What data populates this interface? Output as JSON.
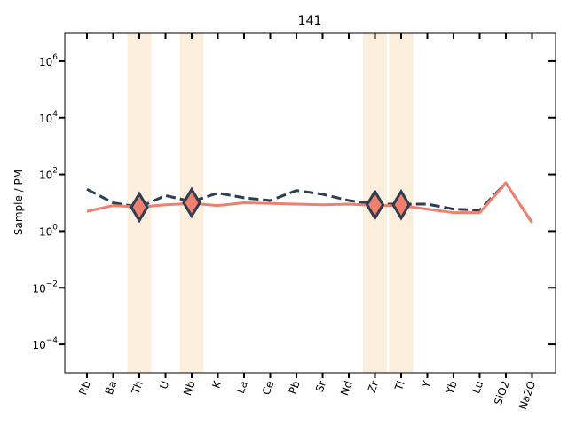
{
  "chart_data": {
    "type": "line",
    "title": "141",
    "xlabel": "",
    "ylabel": "Sample / PM",
    "yscale": "log",
    "ylim": [
      1e-05,
      10000000.0
    ],
    "y_ticks": [
      {
        "value": 0.0001,
        "base": "10",
        "exp": "−4"
      },
      {
        "value": 0.01,
        "base": "10",
        "exp": "−2"
      },
      {
        "value": 1.0,
        "base": "10",
        "exp": "0"
      },
      {
        "value": 100.0,
        "base": "10",
        "exp": "2"
      },
      {
        "value": 10000.0,
        "base": "10",
        "exp": "4"
      },
      {
        "value": 1000000.0,
        "base": "10",
        "exp": "6"
      }
    ],
    "categories": [
      "Rb",
      "Ba",
      "Th",
      "U",
      "Nb",
      "K",
      "La",
      "Ce",
      "Pb",
      "Sr",
      "Nd",
      "Zr",
      "Ti",
      "Y",
      "Yb",
      "Lu",
      "SiO2",
      "Na2O"
    ],
    "highlight_categories": [
      "Th",
      "Nb",
      "Zr",
      "Ti"
    ],
    "highlight_color": "#fbeedd",
    "grid": false,
    "series": [
      {
        "style": "dashed",
        "color": "#2c3e50",
        "values": [
          30,
          10,
          7,
          18,
          11,
          22,
          15,
          12,
          27,
          20,
          12,
          9,
          9,
          9,
          6,
          5.5,
          50,
          2
        ]
      },
      {
        "style": "solid",
        "color": "#f07f6e",
        "values": [
          5,
          8,
          7,
          8.5,
          9.5,
          8,
          10,
          9.5,
          9,
          8.5,
          9,
          8,
          8,
          6,
          4.5,
          4.5,
          50,
          2
        ]
      }
    ],
    "markers": {
      "shape": "diamond",
      "fill": "#f07f6e",
      "edge": "#2c3e50",
      "points": [
        {
          "category": "Th",
          "value": 7
        },
        {
          "category": "Nb",
          "value": 10
        },
        {
          "category": "Zr",
          "value": 8.5
        },
        {
          "category": "Ti",
          "value": 8.5
        }
      ]
    }
  }
}
